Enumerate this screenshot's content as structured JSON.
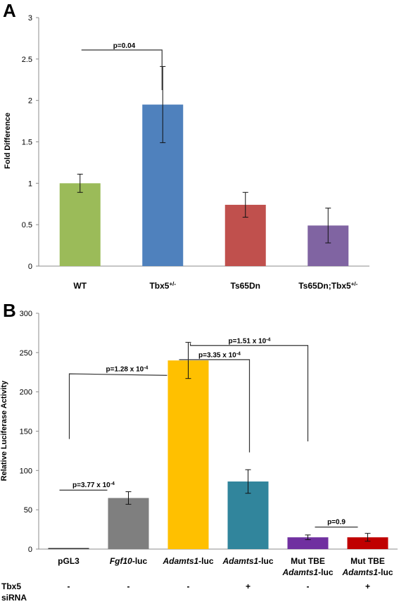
{
  "chart_data": [
    {
      "panel": "A",
      "type": "bar",
      "ylabel": "Fold Difference",
      "ylim": [
        0,
        3
      ],
      "yticks": [
        "0",
        "0.5",
        "1",
        "1.5",
        "2",
        "2.5",
        "3"
      ],
      "categories": [
        {
          "main": "WT",
          "sup": ""
        },
        {
          "main": "Tbx5",
          "sup": "+/-"
        },
        {
          "main": "Ts65Dn",
          "sup": ""
        },
        {
          "main": "Ts65Dn;Tbx5",
          "sup": "+/-"
        }
      ],
      "values": [
        1.0,
        1.95,
        0.74,
        0.49
      ],
      "errors": [
        0.11,
        0.46,
        0.15,
        0.21
      ],
      "colors": [
        "#9bbb59",
        "#4f81bd",
        "#c0504d",
        "#8064a2"
      ],
      "annotations": [
        {
          "text": "p=0.04",
          "from": 0,
          "to": 1
        }
      ]
    },
    {
      "panel": "B",
      "type": "bar",
      "ylabel": "Relative Luciferase Activity",
      "ylim": [
        0,
        300
      ],
      "yticks": [
        "0",
        "50",
        "100",
        "150",
        "200",
        "250",
        "300"
      ],
      "categories": [
        {
          "line1_italic": "",
          "line1": "pGL3",
          "line2_italic": "",
          "line2": ""
        },
        {
          "line1_italic": "Fgf10",
          "line1": "-luc",
          "line2_italic": "",
          "line2": ""
        },
        {
          "line1_italic": "Adamts1",
          "line1": "-luc",
          "line2_italic": "",
          "line2": ""
        },
        {
          "line1_italic": "Adamts1",
          "line1": "-luc",
          "line2_italic": "",
          "line2": ""
        },
        {
          "line1_italic": "",
          "line1": "Mut TBE",
          "line2_italic": "Adamts1",
          "line2": "-luc"
        },
        {
          "line1_italic": "",
          "line1": "Mut TBE",
          "line2_italic": "Adamts1",
          "line2": "-luc"
        }
      ],
      "values": [
        1,
        65,
        240,
        86,
        15,
        15
      ],
      "errors": [
        0,
        8,
        23,
        15,
        3,
        5
      ],
      "colors": [
        "#333333",
        "#7f7f7f",
        "#ffc000",
        "#31859c",
        "#7030a0",
        "#c00000"
      ],
      "tbx5_sirna_label_1": "Tbx5",
      "tbx5_sirna_label_2": "siRNA",
      "tbx5_sirna": [
        "-",
        "-",
        "-",
        "+",
        "-",
        "+"
      ],
      "annotations": [
        {
          "base": "p=1.28 x 10",
          "exp": "-4"
        },
        {
          "base": "p=1.51 x 10",
          "exp": "-4"
        },
        {
          "base": "p=3.35 x 10",
          "exp": "-4"
        },
        {
          "base": "p=3.77 x 10",
          "exp": "-4"
        },
        {
          "base": "p=0.9",
          "exp": ""
        }
      ]
    }
  ]
}
